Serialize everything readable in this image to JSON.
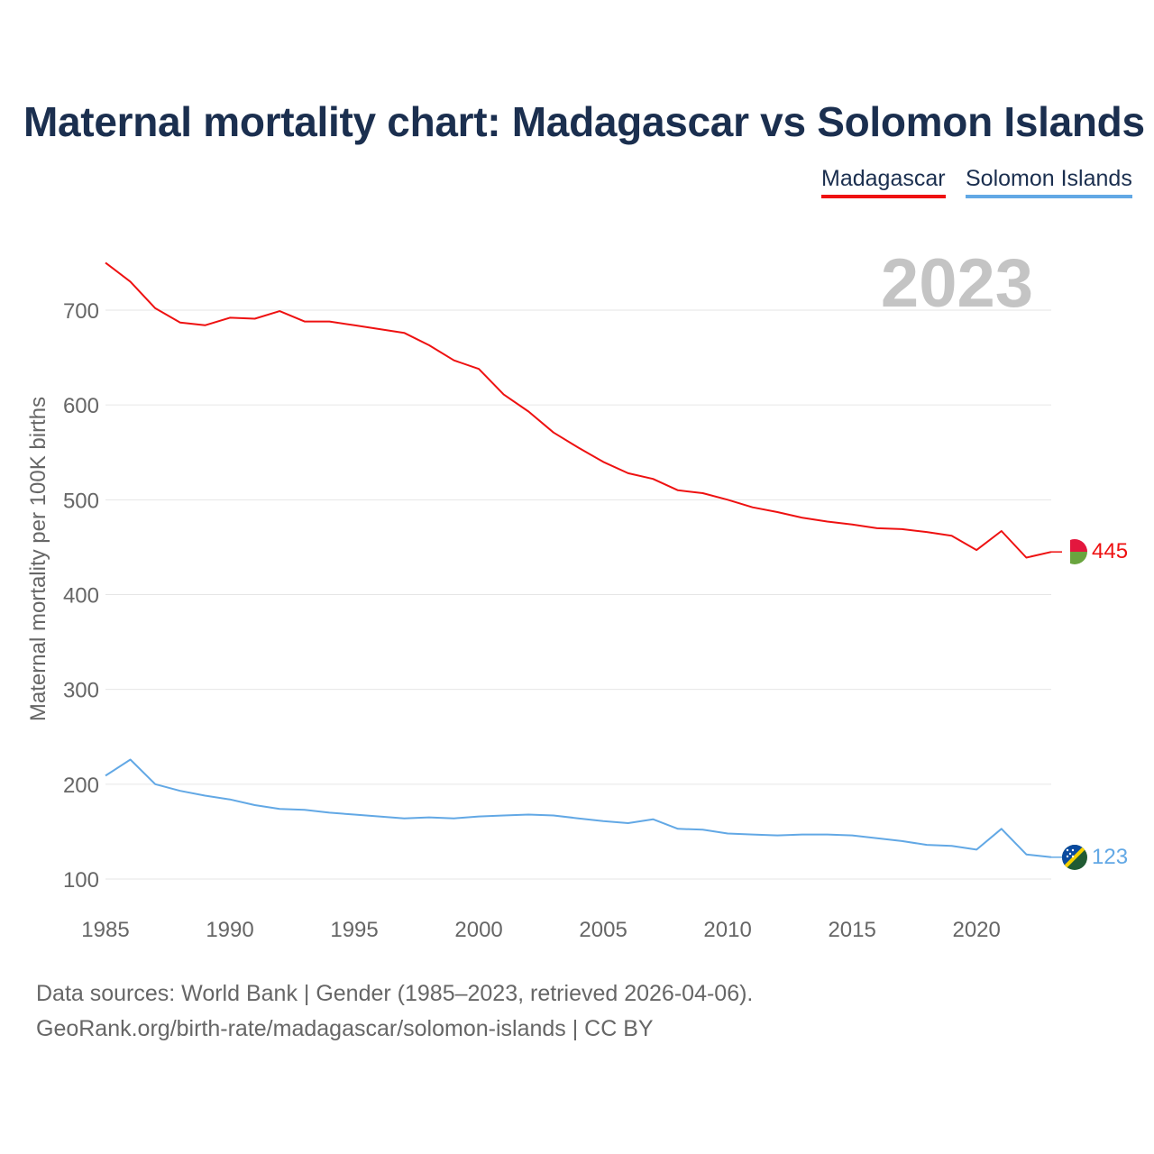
{
  "title": "Maternal mortality chart: Madagascar vs Solomon Islands",
  "legend": [
    {
      "name": "Madagascar",
      "color": "#ee1111"
    },
    {
      "name": "Solomon Islands",
      "color": "#62a8e5"
    }
  ],
  "year_watermark": "2023",
  "footer": {
    "source": "Data sources: World Bank | Gender (1985–2023, retrieved 2026-04-06).",
    "link": "GeoRank.org/birth-rate/madagascar/solomon-islands | CC BY"
  },
  "chart_data": {
    "type": "line",
    "title": "Maternal mortality chart: Madagascar vs Solomon Islands",
    "xlabel": "",
    "ylabel": "Maternal mortality per 100K births",
    "xlim": [
      1985,
      2023
    ],
    "ylim": [
      100,
      750
    ],
    "grid": true,
    "x_ticks": [
      1985,
      1990,
      1995,
      2000,
      2005,
      2010,
      2015,
      2020
    ],
    "y_ticks": [
      100,
      200,
      300,
      400,
      500,
      600,
      700
    ],
    "x": [
      1985,
      1986,
      1987,
      1988,
      1989,
      1990,
      1991,
      1992,
      1993,
      1994,
      1995,
      1996,
      1997,
      1998,
      1999,
      2000,
      2001,
      2002,
      2003,
      2004,
      2005,
      2006,
      2007,
      2008,
      2009,
      2010,
      2011,
      2012,
      2013,
      2014,
      2015,
      2016,
      2017,
      2018,
      2019,
      2020,
      2021,
      2022,
      2023
    ],
    "series": [
      {
        "name": "Madagascar",
        "color": "#ee1111",
        "end_label": "445",
        "values": [
          750,
          730,
          702,
          687,
          684,
          692,
          691,
          699,
          688,
          688,
          684,
          680,
          676,
          663,
          647,
          638,
          611,
          593,
          571,
          555,
          540,
          528,
          522,
          510,
          507,
          500,
          492,
          487,
          481,
          477,
          474,
          470,
          469,
          466,
          462,
          447,
          467,
          439,
          445
        ]
      },
      {
        "name": "Solomon Islands",
        "color": "#62a8e5",
        "end_label": "123",
        "values": [
          209,
          226,
          200,
          193,
          188,
          184,
          178,
          174,
          173,
          170,
          168,
          166,
          164,
          165,
          164,
          166,
          167,
          168,
          167,
          164,
          161,
          159,
          163,
          153,
          152,
          148,
          147,
          146,
          147,
          147,
          146,
          143,
          140,
          136,
          135,
          131,
          153,
          126,
          123
        ]
      }
    ]
  }
}
